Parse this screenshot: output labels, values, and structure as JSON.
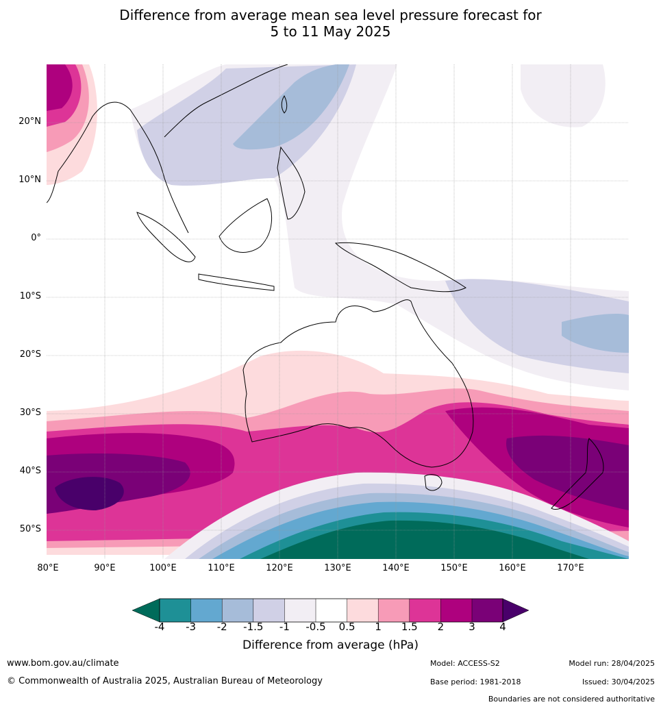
{
  "title_line1": "Difference from average mean sea level pressure forecast for",
  "title_line2": "5 to 11 May 2025",
  "map": {
    "lon_range": [
      80,
      180
    ],
    "lat_range": [
      -55,
      30
    ],
    "lat_labels": [
      "20°N",
      "10°N",
      "0°",
      "10°S",
      "20°S",
      "30°S",
      "40°S",
      "50°S"
    ],
    "lon_labels": [
      "80°E",
      "90°E",
      "100°E",
      "110°E",
      "120°E",
      "130°E",
      "140°E",
      "150°E",
      "160°E",
      "170°E"
    ]
  },
  "colorbar": {
    "title": "Difference from average (hPa)",
    "ticks": [
      "-4",
      "-3",
      "-2",
      "-1.5",
      "-1",
      "-0.5",
      "0.5",
      "1",
      "1.5",
      "2",
      "3",
      "4"
    ],
    "colors": [
      "#006b5a",
      "#1e9096",
      "#63a8d0",
      "#a6bcd9",
      "#d0d0e6",
      "#f2eef4",
      "#ffffff",
      "#fddbdd",
      "#f79bb7",
      "#dd3497",
      "#ae017e",
      "#7a0177",
      "#49006a"
    ]
  },
  "footer": {
    "website": "www.bom.gov.au/climate",
    "copyright": "© Commonwealth of Australia 2025, Australian Bureau of Meteorology",
    "model": "Model: ACCESS-S2",
    "base_period": "Base period: 1981-2018",
    "model_run": "Model run: 28/04/2025",
    "issued": "Issued: 30/04/2025",
    "boundaries": "Boundaries are not considered authoritative"
  }
}
